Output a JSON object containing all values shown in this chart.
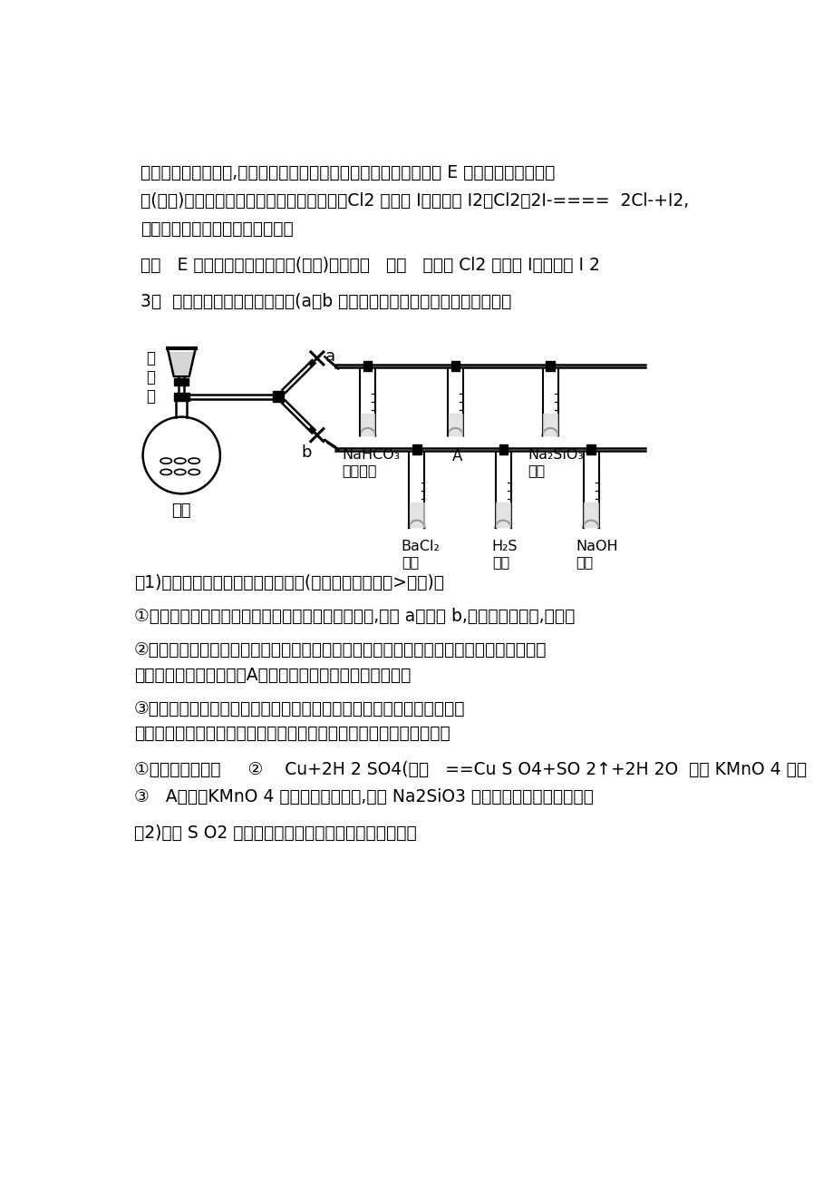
{
  "bg_color": "#ffffff",
  "text_color": "#000000",
  "para1_line1": "化钾反映生成碘单质,碘单质溶于苯呈紫红色。振荡观测到的现象是 E 中溶液分为两层，上",
  "para1_line2": "层(苯层)为紫红色。但是若通入的氯气过量，Cl2 也能将 I－转化为 I2：Cl2＋2I-====  2Cl-+I2,",
  "para1_line3": "则不能阐明溴的非金属性比碘强。",
  "para2": "答案   E 中溶液分为两层，上层(苯层)为紫红色   不能   过量的 Cl2 也可将 I－氧化为 I 2",
  "para3": "3．  根据规定完毕下列实验过程(a、b 为弹簧夹，加热及固定装置已略去）。",
  "sub1": "（1)验证碳、硅非金属性的相对强弱(已知酸性：亚硫酸>碳酸)。",
  "step1": "①连接仪器、＿＿＿＿＿＿＿＿＿＿＿＿、加药物后,打开 a、关闭 b,然后滴入浓硫酸,加热。",
  "step2": "②铜与浓硫酸反映的化学方程式是＿＿＿＿＿＿＿＿＿＿＿＿＿＿＿＿＿＿＿＿＿＿＿＿＿",
  "step2b": "＿＿＿＿＿＿＿＿。装置A中试剂是＿＿＿＿＿＿＿＿＿＿。",
  "step3": "③能阐明碳的非金属性比硅强的实验现象是＿＿＿＿＿＿＿＿＿＿＿＿＿",
  "step3b": "＿＿＿＿＿＿＿＿＿＿＿＿＿＿＿＿＿＿＿＿＿＿＿＿＿＿＿＿＿＿。",
  "answer1": "①检查装置气密性     ②    Cu+2H 2 SO4(浓）   ==Cu S O4+SO 2↑+2H 2O  酸性 KMnO 4 溶液",
  "answer2": "③   A中酸性KMnO 4 溶液没有完全褪色,盛有 Na2SiO3 溶液的试管中浮现白色沉淀",
  "sub2": "（2)验证 S O2 的氧化性、还原性和酸性氧化物的通性。"
}
